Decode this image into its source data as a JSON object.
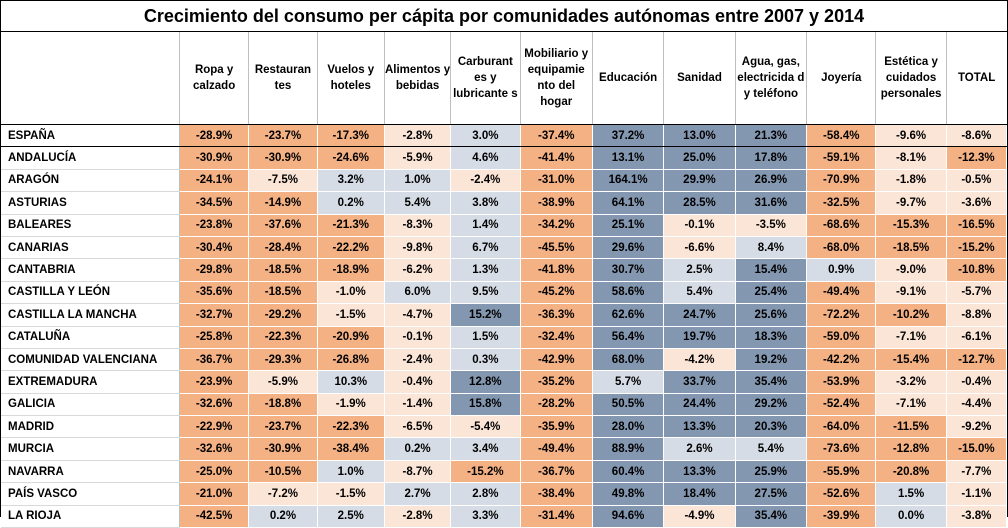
{
  "title": "Crecimiento del consumo per cápita por comunidades autónomas entre 2007 y 2014",
  "columns": [
    "Ropa y calzado",
    "Restauran tes",
    "Vuelos y hoteles",
    "Alimentos y bebidas",
    "Carburant es y lubricante s",
    "Mobiliario y equipamie nto del hogar",
    "Educación",
    "Sanidad",
    "Agua, gas, electricida d y teléfono",
    "Joyería",
    "Estética y cuidados personales",
    "TOTAL"
  ],
  "colors": {
    "strong_decrease": "#f4b183",
    "mild_decrease": "#fbe5d6",
    "mild_increase": "#d6dce5",
    "strong_increase": "#8497b0"
  },
  "rows": [
    {
      "region": "ESPAÑA",
      "values": [
        "-28.9%",
        "-23.7%",
        "-17.3%",
        "-2.8%",
        "3.0%",
        "-37.4%",
        "37.2%",
        "13.0%",
        "21.3%",
        "-58.4%",
        "-9.6%",
        "-8.6%"
      ]
    },
    {
      "region": "ANDALUCÍA",
      "values": [
        "-30.9%",
        "-30.9%",
        "-24.6%",
        "-5.9%",
        "4.6%",
        "-41.4%",
        "13.1%",
        "25.0%",
        "17.8%",
        "-59.1%",
        "-8.1%",
        "-12.3%"
      ]
    },
    {
      "region": "ARAGÓN",
      "values": [
        "-24.1%",
        "-7.5%",
        "3.2%",
        "1.0%",
        "-2.4%",
        "-31.0%",
        "164.1%",
        "29.9%",
        "26.9%",
        "-70.9%",
        "-1.8%",
        "-0.5%"
      ]
    },
    {
      "region": "ASTURIAS",
      "values": [
        "-34.5%",
        "-14.9%",
        "0.2%",
        "5.4%",
        "3.8%",
        "-38.9%",
        "64.1%",
        "28.5%",
        "31.6%",
        "-32.5%",
        "-9.7%",
        "-3.6%"
      ]
    },
    {
      "region": "BALEARES",
      "values": [
        "-23.8%",
        "-37.6%",
        "-21.3%",
        "-8.3%",
        "1.4%",
        "-34.2%",
        "25.1%",
        "-0.1%",
        "-3.5%",
        "-68.6%",
        "-15.3%",
        "-16.5%"
      ]
    },
    {
      "region": "CANARIAS",
      "values": [
        "-30.4%",
        "-28.4%",
        "-22.2%",
        "-9.8%",
        "6.7%",
        "-45.5%",
        "29.6%",
        "-6.6%",
        "8.4%",
        "-68.0%",
        "-18.5%",
        "-15.2%"
      ]
    },
    {
      "region": "CANTABRIA",
      "values": [
        "-29.8%",
        "-18.5%",
        "-18.9%",
        "-6.2%",
        "1.3%",
        "-41.8%",
        "30.7%",
        "2.5%",
        "15.4%",
        "0.9%",
        "-9.0%",
        "-10.8%"
      ]
    },
    {
      "region": "CASTILLA Y LEÓN",
      "values": [
        "-35.6%",
        "-18.5%",
        "-1.0%",
        "6.0%",
        "9.5%",
        "-45.2%",
        "58.6%",
        "5.4%",
        "25.4%",
        "-49.4%",
        "-9.1%",
        "-5.7%"
      ]
    },
    {
      "region": "CASTILLA LA MANCHA",
      "values": [
        "-32.7%",
        "-29.2%",
        "-1.5%",
        "-4.7%",
        "15.2%",
        "-36.3%",
        "62.6%",
        "24.7%",
        "25.6%",
        "-72.2%",
        "-10.2%",
        "-8.8%"
      ]
    },
    {
      "region": "CATALUÑA",
      "values": [
        "-25.8%",
        "-22.3%",
        "-20.9%",
        "-0.1%",
        "1.5%",
        "-32.4%",
        "56.4%",
        "19.7%",
        "18.3%",
        "-59.0%",
        "-7.1%",
        "-6.1%"
      ]
    },
    {
      "region": "COMUNIDAD VALENCIANA",
      "values": [
        "-36.7%",
        "-29.3%",
        "-26.8%",
        "-2.4%",
        "0.3%",
        "-42.9%",
        "68.0%",
        "-4.2%",
        "19.2%",
        "-42.2%",
        "-15.4%",
        "-12.7%"
      ]
    },
    {
      "region": "EXTREMADURA",
      "values": [
        "-23.9%",
        "-5.9%",
        "10.3%",
        "-0.4%",
        "12.8%",
        "-35.2%",
        "5.7%",
        "33.7%",
        "35.4%",
        "-53.9%",
        "-3.2%",
        "-0.4%"
      ]
    },
    {
      "region": "GALICIA",
      "values": [
        "-32.6%",
        "-18.8%",
        "-1.9%",
        "-1.4%",
        "15.8%",
        "-28.2%",
        "50.5%",
        "24.4%",
        "29.2%",
        "-52.4%",
        "-7.1%",
        "-4.4%"
      ]
    },
    {
      "region": "MADRID",
      "values": [
        "-22.9%",
        "-23.7%",
        "-22.3%",
        "-6.5%",
        "-5.4%",
        "-35.9%",
        "28.0%",
        "13.3%",
        "20.3%",
        "-64.0%",
        "-11.5%",
        "-9.2%"
      ]
    },
    {
      "region": "MURCIA",
      "values": [
        "-32.6%",
        "-30.9%",
        "-38.4%",
        "0.2%",
        "3.4%",
        "-49.4%",
        "88.9%",
        "2.6%",
        "5.4%",
        "-73.6%",
        "-12.8%",
        "-15.0%"
      ]
    },
    {
      "region": "NAVARRA",
      "values": [
        "-25.0%",
        "-10.5%",
        "1.0%",
        "-8.7%",
        "-15.2%",
        "-36.7%",
        "60.4%",
        "13.3%",
        "25.9%",
        "-55.9%",
        "-20.8%",
        "-7.7%"
      ]
    },
    {
      "region": "PAÍS VASCO",
      "values": [
        "-21.0%",
        "-7.2%",
        "-1.5%",
        "2.7%",
        "2.8%",
        "-38.4%",
        "49.8%",
        "18.4%",
        "27.5%",
        "-52.6%",
        "1.5%",
        "-1.1%"
      ]
    },
    {
      "region": "LA RIOJA",
      "values": [
        "-42.5%",
        "0.2%",
        "2.5%",
        "-2.8%",
        "3.3%",
        "-31.4%",
        "94.6%",
        "-4.9%",
        "35.4%",
        "-39.9%",
        "0.0%",
        "-3.8%"
      ]
    }
  ]
}
